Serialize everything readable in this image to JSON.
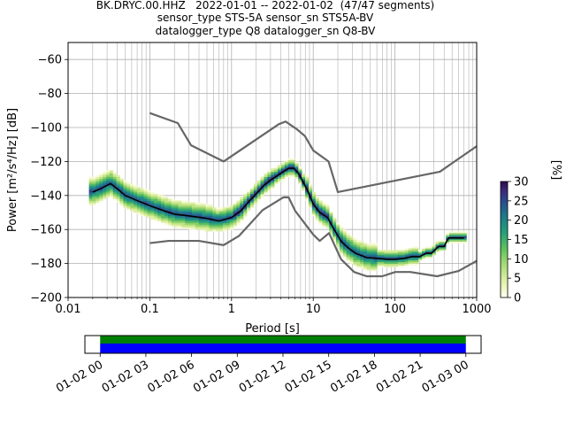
{
  "title_lines": [
    "BK.DRYC.00.HHZ   2022-01-01 -- 2022-01-02  (47/47 segments)",
    "sensor_type STS-5A sensor_sn STS5A-BV",
    "datalogger_type Q8 datalogger_sn Q8-BV"
  ],
  "colors": {
    "noise_model": "#666666",
    "mean_line": "#000000",
    "grid": "#b0b0b0",
    "timeline_available": "#0000ff",
    "timeline_coverage": "#008000"
  },
  "chart_data": [
    {
      "type": "heatmap",
      "xlabel": "Period [s]",
      "ylabel": "Power [m²/s⁴/Hz] [dB]",
      "xscale": "log",
      "xlim": [
        0.01,
        1000
      ],
      "ylim": [
        -200,
        -50
      ],
      "xticks": [
        0.01,
        0.1,
        1,
        10,
        100,
        1000
      ],
      "xtick_labels": [
        "0.01",
        "0.1",
        "1",
        "10",
        "100",
        "1000"
      ],
      "yticks": [
        -60,
        -80,
        -100,
        -120,
        -140,
        -160,
        -180,
        -200
      ],
      "grid": true,
      "colorbar": {
        "label": "[%]",
        "range": [
          0,
          30
        ],
        "ticks": [
          0,
          5,
          10,
          15,
          20,
          25,
          30
        ],
        "colormap": [
          "#fffff0",
          "#e6f4b0",
          "#a8dd78",
          "#5fc25e",
          "#23a07a",
          "#1b7b8a",
          "#2a4f8c",
          "#3b2c7a",
          "#2d0a4e"
        ]
      },
      "series": [
        {
          "role": "noise-model-high",
          "x": [
            0.1,
            0.22,
            0.32,
            0.8,
            3.8,
            4.6,
            6.3,
            7.9,
            10,
            15.4,
            20,
            354.8,
            1000
          ],
          "y": [
            -91.5,
            -97.4,
            -110.5,
            -120,
            -98,
            -96.5,
            -101,
            -105,
            -113.5,
            -120,
            -138,
            -126,
            -111
          ]
        },
        {
          "role": "noise-model-low",
          "x": [
            0.1,
            0.17,
            0.4,
            0.8,
            1.24,
            2.4,
            4.3,
            5,
            6,
            10,
            12,
            15.6,
            21.9,
            31.6,
            45,
            70,
            101,
            154,
            328,
            600,
            10000
          ],
          "y": [
            -168,
            -166.7,
            -166.7,
            -169.2,
            -163.7,
            -148.6,
            -141.1,
            -141.1,
            -149,
            -163,
            -166.7,
            -162.1,
            -177.5,
            -185,
            -187.5,
            -187.5,
            -185,
            -185,
            -187.5,
            -184.4,
            -151.5
          ]
        },
        {
          "role": "mean-psd",
          "x": [
            0.02,
            0.025,
            0.03,
            0.033,
            0.04,
            0.05,
            0.07,
            0.1,
            0.15,
            0.2,
            0.3,
            0.5,
            0.7,
            1,
            1.3,
            1.6,
            2,
            2.5,
            3,
            4,
            5,
            5.8,
            6.6,
            7.5,
            8.5,
            10,
            12,
            15,
            18,
            22,
            27,
            33,
            45,
            60,
            80,
            100,
            130,
            160,
            200,
            240,
            280,
            340,
            400,
            450,
            500,
            550,
            600,
            650,
            700
          ],
          "y": [
            -138,
            -136,
            -134,
            -133,
            -136,
            -140,
            -143,
            -146,
            -149,
            -151,
            -152,
            -153.5,
            -155,
            -153,
            -149,
            -144,
            -139,
            -134,
            -131,
            -127,
            -124,
            -124,
            -127,
            -132,
            -137,
            -145,
            -150,
            -153,
            -160,
            -167,
            -171,
            -174,
            -176.5,
            -177,
            -177.5,
            -177.5,
            -177,
            -176,
            -176,
            -174,
            -174,
            -170,
            -170,
            -165,
            -165,
            -165,
            -165,
            -165,
            -165
          ]
        }
      ]
    },
    {
      "type": "bar",
      "role": "data-availability-timeline",
      "xtick_labels": [
        "01-02 00",
        "01-02 03",
        "01-02 06",
        "01-02 09",
        "01-02 12",
        "01-02 15",
        "01-02 18",
        "01-02 21",
        "01-03 00"
      ],
      "xlim_hours": [
        -1,
        25
      ],
      "coverage_hours": [
        0,
        24
      ]
    }
  ]
}
